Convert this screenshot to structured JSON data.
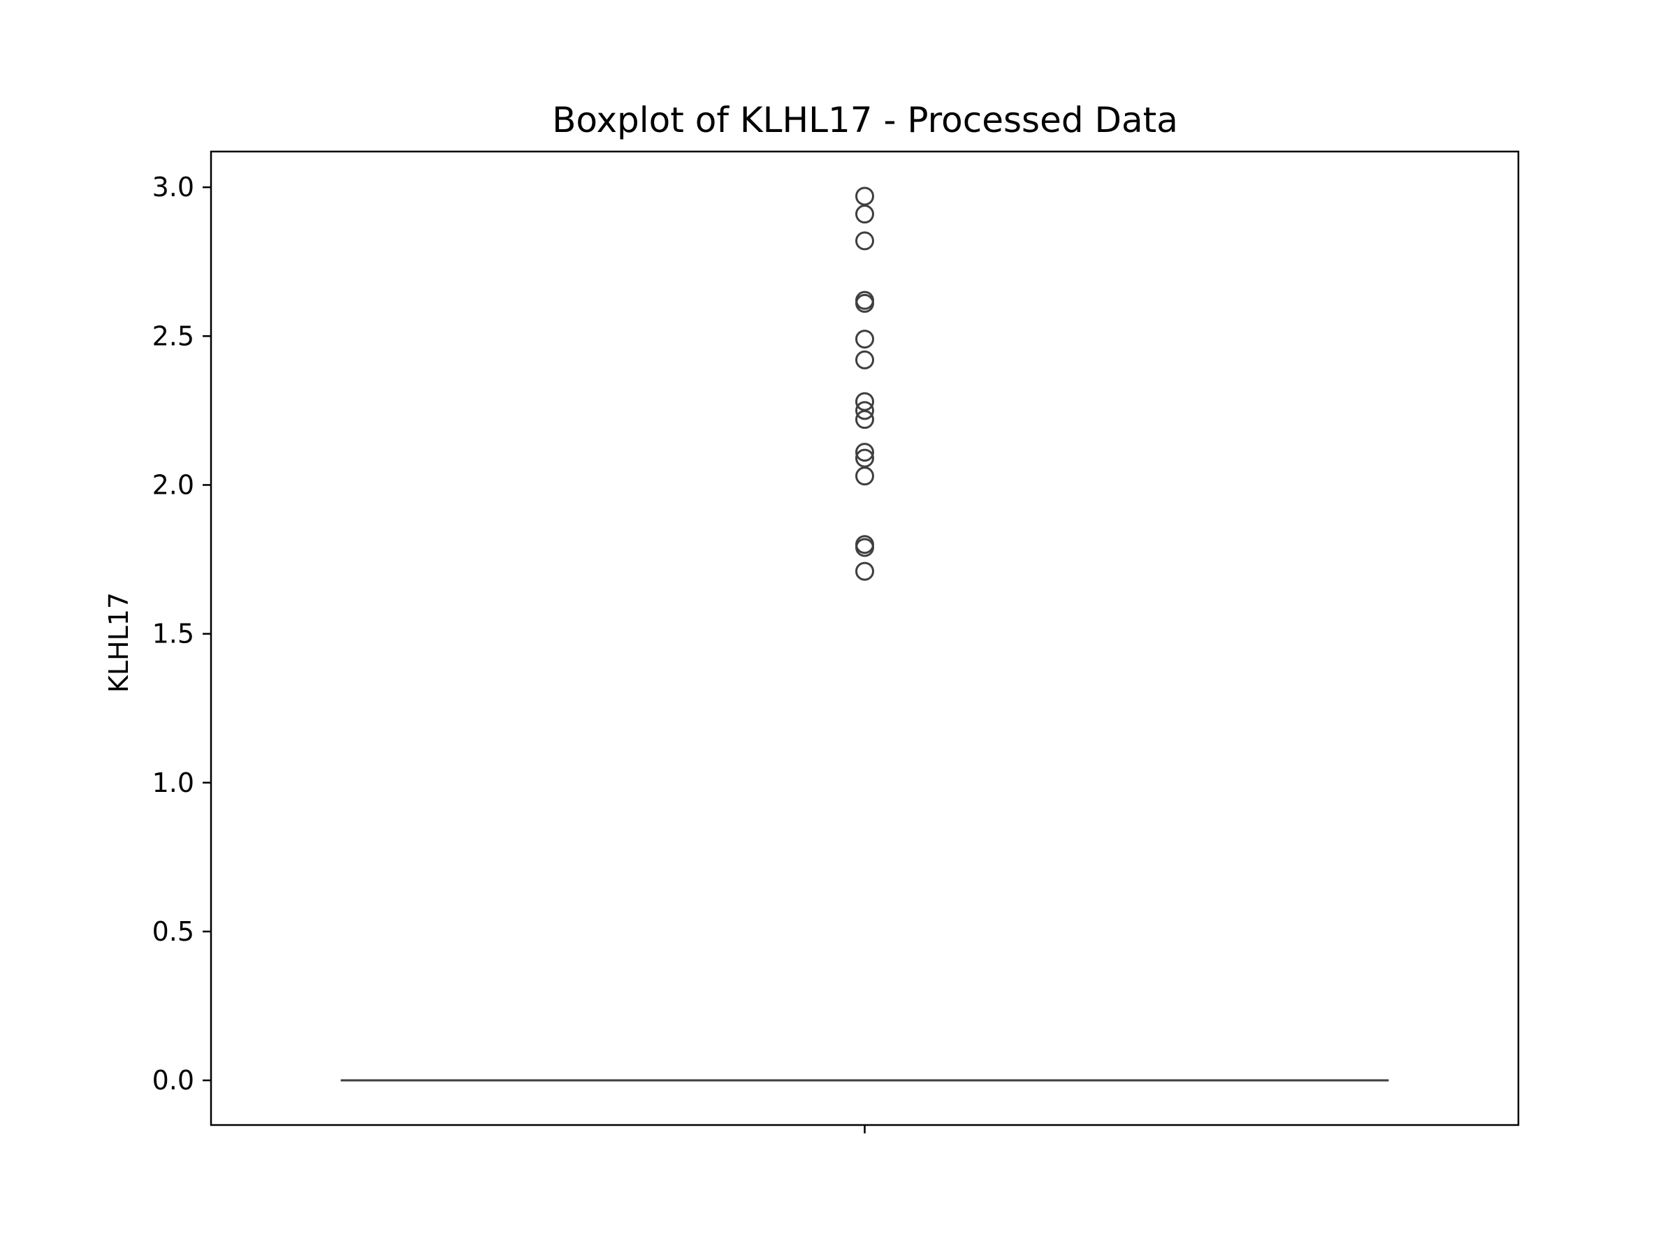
{
  "chart_data": {
    "type": "box",
    "title": "Boxplot of KLHL17 - Processed Data",
    "xlabel": "",
    "ylabel": "KLHL17",
    "ylim": [
      -0.15,
      3.12
    ],
    "yticks": [
      0.0,
      0.5,
      1.0,
      1.5,
      2.0,
      2.5,
      3.0
    ],
    "ytick_labels": [
      "0.0",
      "0.5",
      "1.0",
      "1.5",
      "2.0",
      "2.5",
      "3.0"
    ],
    "grid": false,
    "boxes": [
      {
        "q1": 0.0,
        "median": 0.0,
        "q3": 0.0,
        "whisker_low": 0.0,
        "whisker_high": 0.0,
        "outliers": [
          2.97,
          2.91,
          2.82,
          2.62,
          2.61,
          2.49,
          2.42,
          2.28,
          2.25,
          2.22,
          2.11,
          2.09,
          2.03,
          1.8,
          1.79,
          1.71
        ]
      }
    ],
    "colors": {
      "box_line": "#3f3f3f",
      "frame": "#000000"
    }
  }
}
